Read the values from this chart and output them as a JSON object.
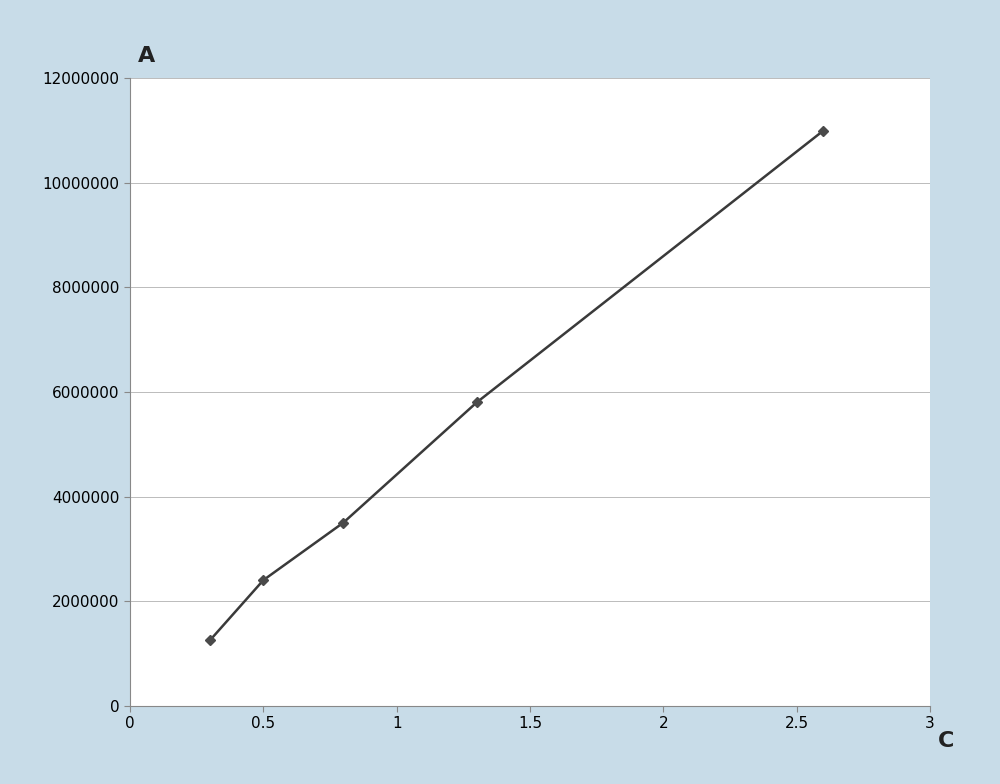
{
  "x": [
    0.3,
    0.5,
    0.8,
    1.3,
    2.6
  ],
  "y": [
    1250000,
    2400000,
    3500000,
    5800000,
    11000000
  ],
  "xlabel": "C",
  "ylabel": "A",
  "xlim": [
    0,
    3
  ],
  "ylim": [
    0,
    12000000
  ],
  "xticks": [
    0,
    0.5,
    1,
    1.5,
    2,
    2.5,
    3
  ],
  "xtick_labels": [
    "0",
    "0.5",
    "1",
    "1.5",
    "2",
    "2.5",
    "3"
  ],
  "yticks": [
    0,
    2000000,
    4000000,
    6000000,
    8000000,
    10000000,
    12000000
  ],
  "line_color": "#3a3a3a",
  "marker_color": "#4a4a4a",
  "marker": "D",
  "marker_size": 5,
  "line_width": 1.8,
  "figure_bg_color": "#c8dce8",
  "plot_bg_color": "#ffffff",
  "grid_color": "#bbbbbb",
  "axis_label_fontsize": 16,
  "tick_fontsize": 11,
  "spine_color": "#888888"
}
